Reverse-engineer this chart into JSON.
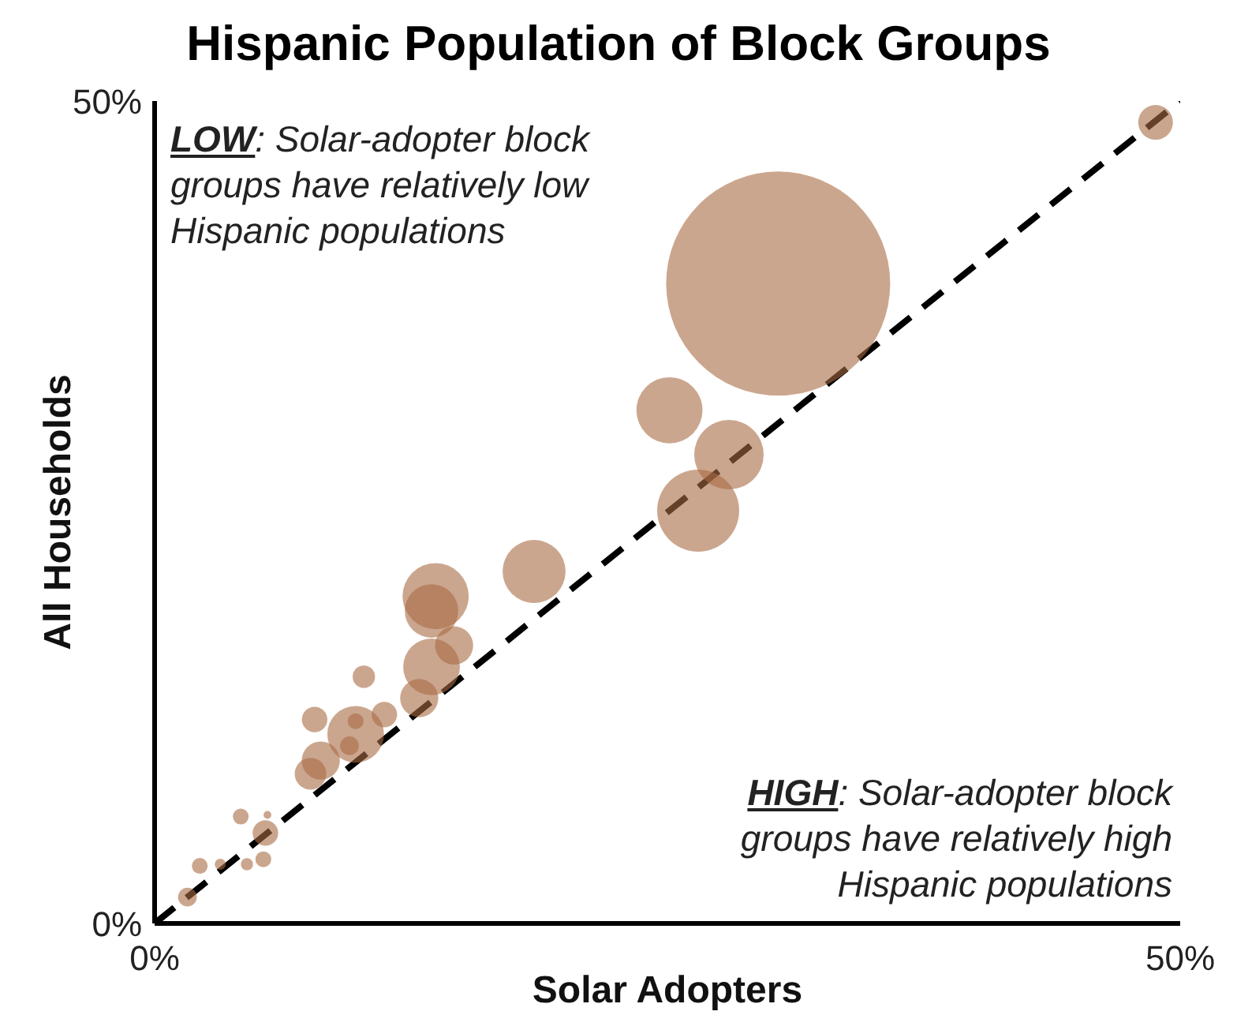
{
  "chart_data": {
    "type": "bubble",
    "title": "Hispanic Population of Block Groups",
    "xlabel": "Solar Adopters",
    "ylabel": "All Households",
    "xlim": [
      0,
      50
    ],
    "ylim": [
      0,
      50
    ],
    "xticks": [
      {
        "value": 0,
        "label": "0%"
      },
      {
        "value": 50,
        "label": "50%"
      }
    ],
    "yticks": [
      {
        "value": 0,
        "label": "0%"
      },
      {
        "value": 50,
        "label": "50%"
      }
    ],
    "annotations": [
      "LOW: Solar-adopter block groups have relatively low Hispanic populations",
      "HIGH: Solar-adopter block groups have relatively high Hispanic populations"
    ],
    "series": [
      {
        "color": "#a86a42",
        "x": [
          30.4,
          48.8,
          25.1,
          28.0,
          26.5,
          18.5,
          13.7,
          13.5,
          14.6,
          13.5,
          12.9,
          10.2,
          7.8,
          11.2,
          9.8,
          9.8,
          9.5,
          8.1,
          7.6,
          4.2,
          5.5,
          5.4,
          5.3,
          4.5,
          2.2,
          3.2,
          1.6
        ],
        "values": [
          38.9,
          48.7,
          31.2,
          28.5,
          25.1,
          21.4,
          19.9,
          19.0,
          16.9,
          15.6,
          13.7,
          15.0,
          12.4,
          12.7,
          11.5,
          12.3,
          10.8,
          9.9,
          9.1,
          6.5,
          6.6,
          5.5,
          3.9,
          3.6,
          3.5,
          3.6,
          1.6
        ],
        "sizes": [
          1,
          0.024,
          0.087,
          0.096,
          0.134,
          0.079,
          0.087,
          0.057,
          0.029,
          0.064,
          0.029,
          0.01,
          0.013,
          0.013,
          0.064,
          0.005,
          0.007,
          0.029,
          0.02,
          0.005,
          0.0012,
          0.013,
          0.005,
          0.003,
          0.005,
          0.0024,
          0.007
        ]
      },
      {
        "type": "line",
        "color": "#000000",
        "line_style": "dashed",
        "marker": "none",
        "x": [
          0,
          50
        ],
        "values": [
          0,
          50
        ]
      }
    ]
  }
}
